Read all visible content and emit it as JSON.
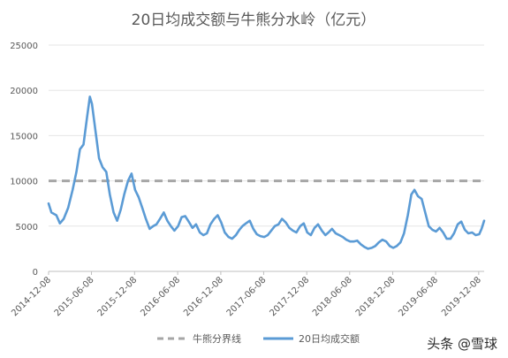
{
  "chart_data": {
    "type": "line",
    "title": "20日均成交额与牛熊分水岭（亿元）",
    "ylim": [
      0,
      25000
    ],
    "y_ticks": [
      0,
      5000,
      10000,
      15000,
      20000,
      25000
    ],
    "x_tick_labels": [
      "2014-12-08",
      "2015-06-08",
      "2015-12-08",
      "2016-06-08",
      "2016-12-08",
      "2017-06-08",
      "2017-12-08",
      "2018-06-08",
      "2018-12-08",
      "2019-06-08",
      "2019-12-08"
    ],
    "x_range": [
      "2014-12-08",
      "2019-12-31"
    ],
    "grid": "horizontal",
    "legend_position": "bottom",
    "series": [
      {
        "name": "牛熊分界线",
        "style": "dashed",
        "color": "#a6a6a6",
        "points": [
          [
            "2014-12-08",
            10000
          ],
          [
            "2019-12-31",
            10000
          ]
        ]
      },
      {
        "name": "20日均成交额",
        "style": "solid",
        "color": "#5b9bd5",
        "points": [
          [
            "2014-12-08",
            7500
          ],
          [
            "2014-12-20",
            6500
          ],
          [
            "2015-01-10",
            6200
          ],
          [
            "2015-01-25",
            5300
          ],
          [
            "2015-02-10",
            5800
          ],
          [
            "2015-03-01",
            7000
          ],
          [
            "2015-03-20",
            9000
          ],
          [
            "2015-04-05",
            11000
          ],
          [
            "2015-04-20",
            13500
          ],
          [
            "2015-05-05",
            14000
          ],
          [
            "2015-05-20",
            17000
          ],
          [
            "2015-06-01",
            19300
          ],
          [
            "2015-06-10",
            18500
          ],
          [
            "2015-06-25",
            15500
          ],
          [
            "2015-07-10",
            12500
          ],
          [
            "2015-07-25",
            11500
          ],
          [
            "2015-08-10",
            11000
          ],
          [
            "2015-08-25",
            8500
          ],
          [
            "2015-09-10",
            6500
          ],
          [
            "2015-09-25",
            5600
          ],
          [
            "2015-10-10",
            6800
          ],
          [
            "2015-10-25",
            8500
          ],
          [
            "2015-11-10",
            10000
          ],
          [
            "2015-11-25",
            10800
          ],
          [
            "2015-12-10",
            9000
          ],
          [
            "2015-12-25",
            8200
          ],
          [
            "2016-01-10",
            7000
          ],
          [
            "2016-01-25",
            5800
          ],
          [
            "2016-02-10",
            4700
          ],
          [
            "2016-02-25",
            5000
          ],
          [
            "2016-03-10",
            5200
          ],
          [
            "2016-03-25",
            5800
          ],
          [
            "2016-04-10",
            6500
          ],
          [
            "2016-04-25",
            5600
          ],
          [
            "2016-05-10",
            5000
          ],
          [
            "2016-05-25",
            4500
          ],
          [
            "2016-06-10",
            5000
          ],
          [
            "2016-06-25",
            6000
          ],
          [
            "2016-07-10",
            6100
          ],
          [
            "2016-07-25",
            5500
          ],
          [
            "2016-08-10",
            4800
          ],
          [
            "2016-08-25",
            5200
          ],
          [
            "2016-09-10",
            4300
          ],
          [
            "2016-09-25",
            4000
          ],
          [
            "2016-10-10",
            4200
          ],
          [
            "2016-10-25",
            5200
          ],
          [
            "2016-11-10",
            5800
          ],
          [
            "2016-11-25",
            6200
          ],
          [
            "2016-12-10",
            5400
          ],
          [
            "2016-12-25",
            4300
          ],
          [
            "2017-01-10",
            3800
          ],
          [
            "2017-01-25",
            3600
          ],
          [
            "2017-02-10",
            4000
          ],
          [
            "2017-02-25",
            4600
          ],
          [
            "2017-03-10",
            5000
          ],
          [
            "2017-03-25",
            5300
          ],
          [
            "2017-04-10",
            5600
          ],
          [
            "2017-04-25",
            4700
          ],
          [
            "2017-05-10",
            4100
          ],
          [
            "2017-05-25",
            3900
          ],
          [
            "2017-06-10",
            3800
          ],
          [
            "2017-06-25",
            4000
          ],
          [
            "2017-07-10",
            4500
          ],
          [
            "2017-07-25",
            5000
          ],
          [
            "2017-08-10",
            5200
          ],
          [
            "2017-08-25",
            5800
          ],
          [
            "2017-09-10",
            5400
          ],
          [
            "2017-09-25",
            4800
          ],
          [
            "2017-10-10",
            4500
          ],
          [
            "2017-10-25",
            4300
          ],
          [
            "2017-11-10",
            5000
          ],
          [
            "2017-11-25",
            5300
          ],
          [
            "2017-12-10",
            4300
          ],
          [
            "2017-12-25",
            4000
          ],
          [
            "2018-01-10",
            4800
          ],
          [
            "2018-01-25",
            5200
          ],
          [
            "2018-02-10",
            4500
          ],
          [
            "2018-02-25",
            4000
          ],
          [
            "2018-03-10",
            4300
          ],
          [
            "2018-03-25",
            4700
          ],
          [
            "2018-04-10",
            4200
          ],
          [
            "2018-04-25",
            4000
          ],
          [
            "2018-05-10",
            3800
          ],
          [
            "2018-05-25",
            3500
          ],
          [
            "2018-06-10",
            3300
          ],
          [
            "2018-06-25",
            3300
          ],
          [
            "2018-07-10",
            3400
          ],
          [
            "2018-07-25",
            3000
          ],
          [
            "2018-08-10",
            2700
          ],
          [
            "2018-08-25",
            2500
          ],
          [
            "2018-09-10",
            2600
          ],
          [
            "2018-09-25",
            2800
          ],
          [
            "2018-10-10",
            3200
          ],
          [
            "2018-10-25",
            3500
          ],
          [
            "2018-11-10",
            3300
          ],
          [
            "2018-11-25",
            2800
          ],
          [
            "2018-12-10",
            2600
          ],
          [
            "2018-12-25",
            2800
          ],
          [
            "2019-01-10",
            3200
          ],
          [
            "2019-01-25",
            4200
          ],
          [
            "2019-02-10",
            6200
          ],
          [
            "2019-02-25",
            8500
          ],
          [
            "2019-03-10",
            9000
          ],
          [
            "2019-03-25",
            8300
          ],
          [
            "2019-04-10",
            8000
          ],
          [
            "2019-04-25",
            6500
          ],
          [
            "2019-05-10",
            5000
          ],
          [
            "2019-05-25",
            4600
          ],
          [
            "2019-06-10",
            4400
          ],
          [
            "2019-06-25",
            4800
          ],
          [
            "2019-07-10",
            4300
          ],
          [
            "2019-07-25",
            3600
          ],
          [
            "2019-08-10",
            3600
          ],
          [
            "2019-08-25",
            4200
          ],
          [
            "2019-09-10",
            5200
          ],
          [
            "2019-09-25",
            5500
          ],
          [
            "2019-10-10",
            4600
          ],
          [
            "2019-10-25",
            4200
          ],
          [
            "2019-11-10",
            4300
          ],
          [
            "2019-11-25",
            4000
          ],
          [
            "2019-12-10",
            4100
          ],
          [
            "2019-12-20",
            4700
          ],
          [
            "2019-12-31",
            5600
          ]
        ]
      }
    ]
  },
  "watermark": "头条 @雪球"
}
